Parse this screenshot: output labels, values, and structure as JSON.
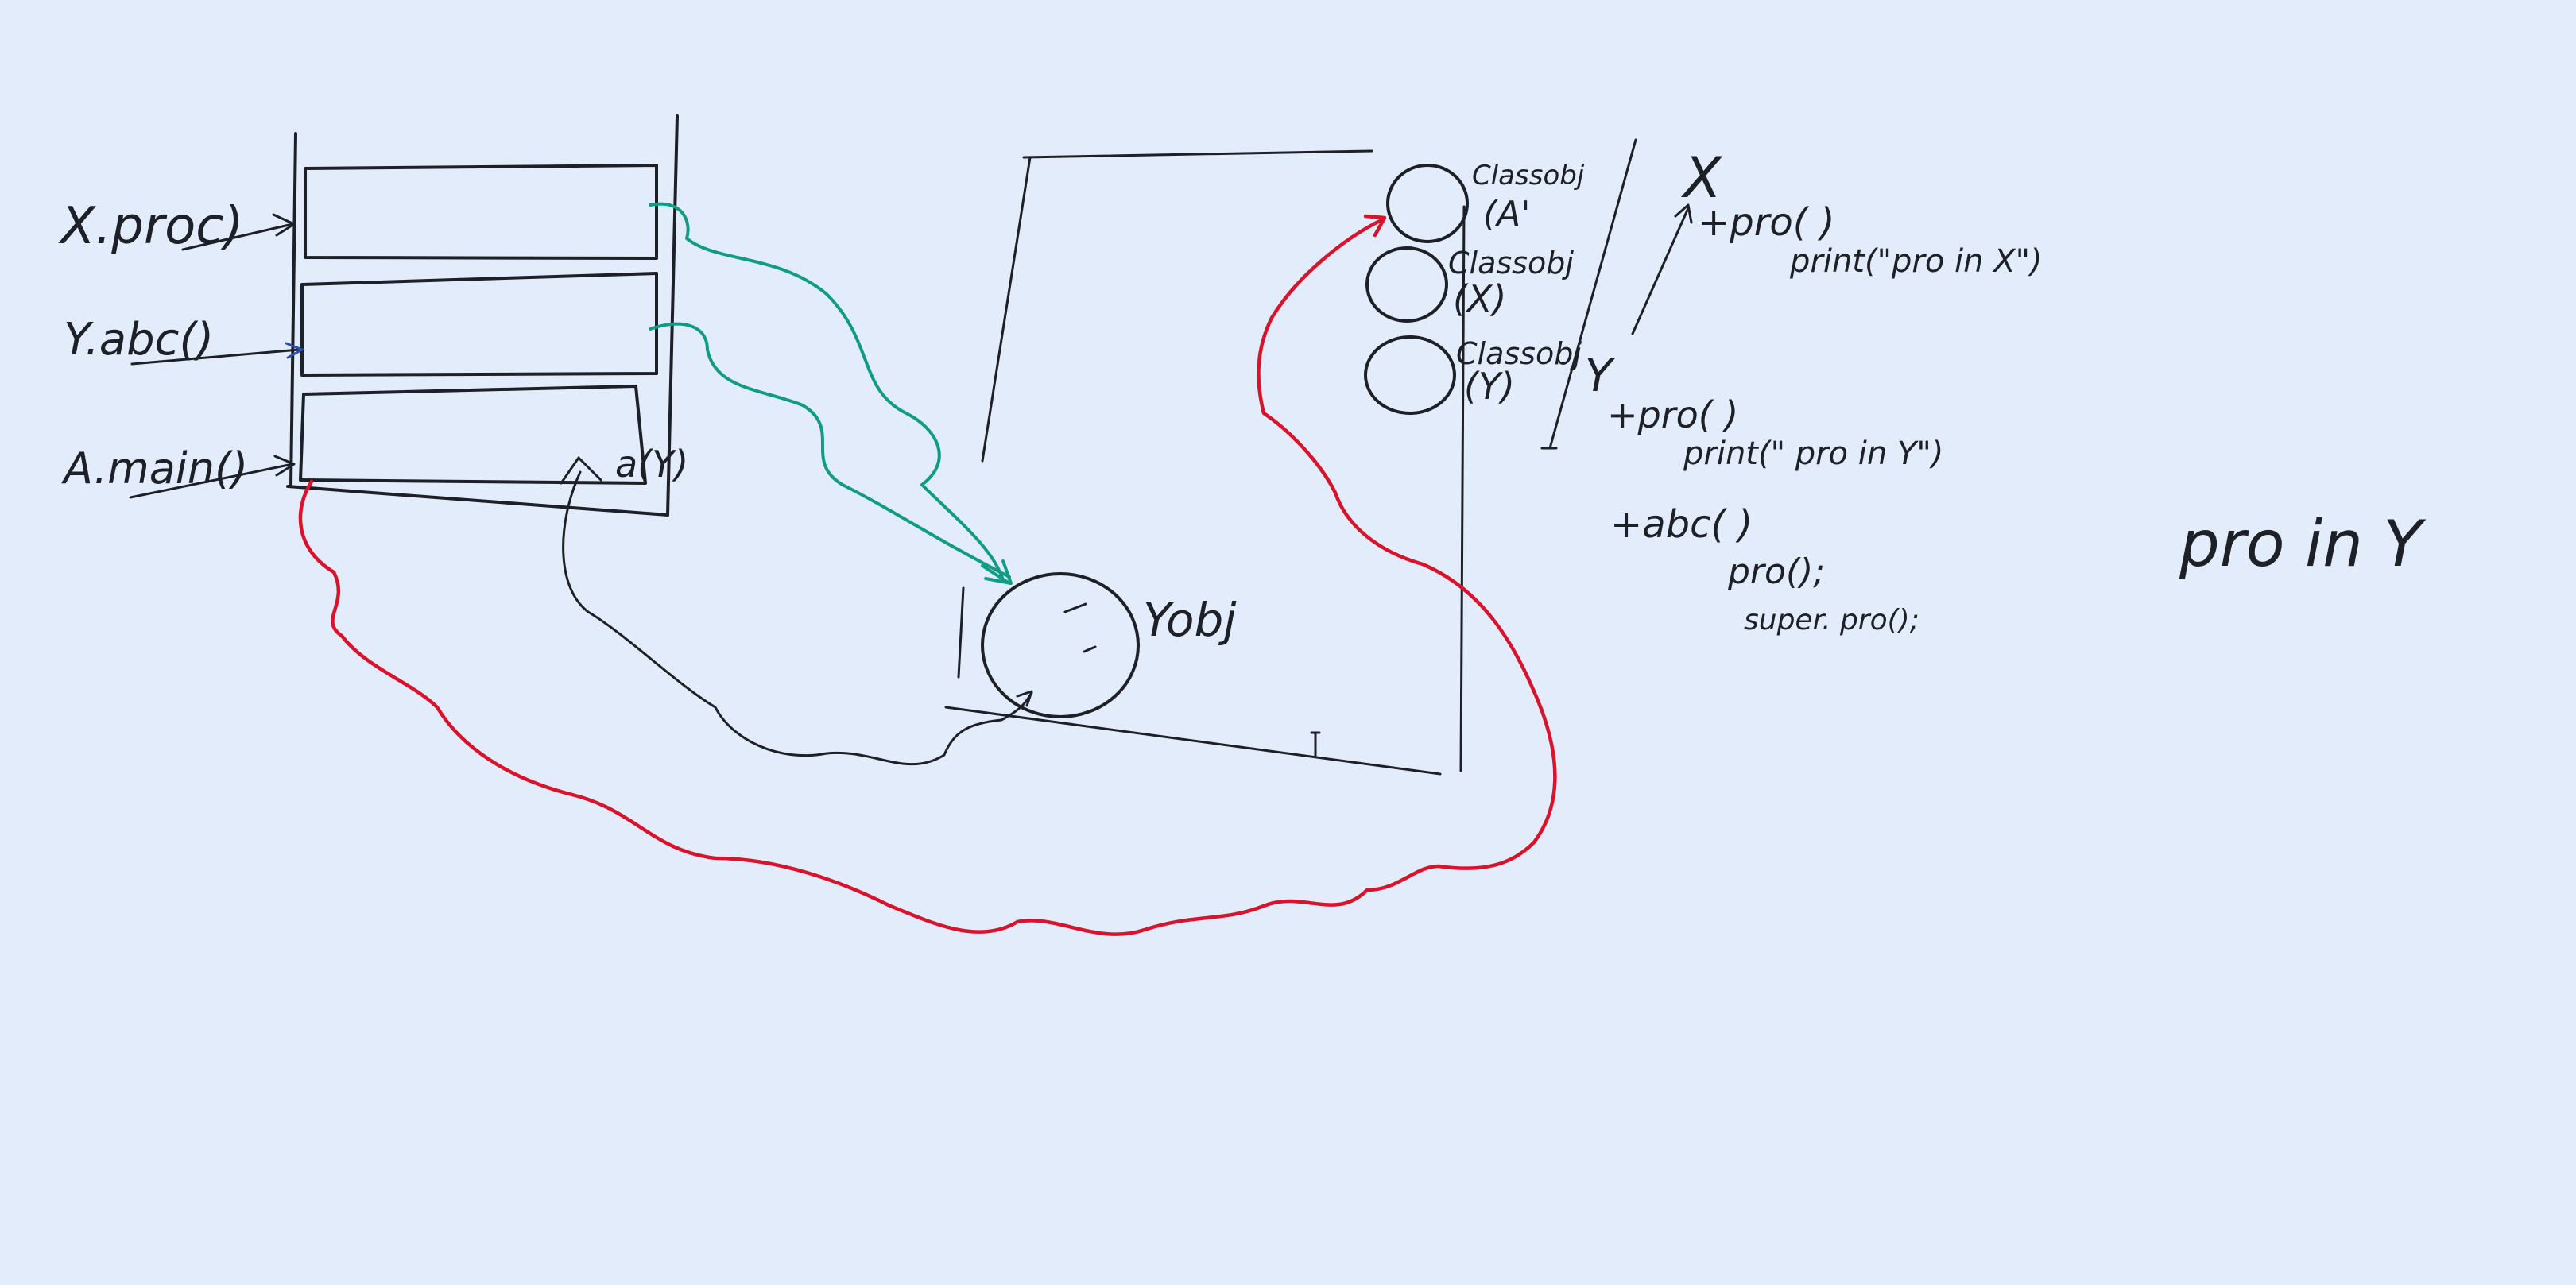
{
  "colors": {
    "board": "#e3ecfa",
    "ink": "#1d2026",
    "red_marker": "#d8132b",
    "teal_marker": "#0f9c83",
    "blue_marker": "#2a4fb0"
  },
  "stack": {
    "frame_labels": [
      "X.proc)",
      "Y.abc()",
      "A.main()"
    ],
    "local_var": "a(Y)"
  },
  "heap": {
    "object_label": "Yobj"
  },
  "method_area": {
    "class_objects": [
      {
        "title": "Classobj",
        "name": "(A'"
      },
      {
        "title": "Classobj",
        "name": "(X)"
      },
      {
        "title": "Classobj",
        "name": "(Y)"
      }
    ]
  },
  "code": {
    "class_x": {
      "name": "X",
      "method": "+pro( )",
      "body": "print(\"pro in X\")"
    },
    "class_y": {
      "name": "Y",
      "method1": "+pro( )",
      "body1": "print(\" pro in Y\")",
      "method2": "+abc( )",
      "call1": "pro();",
      "call2": "super. pro();"
    }
  },
  "output": "pro in Y"
}
